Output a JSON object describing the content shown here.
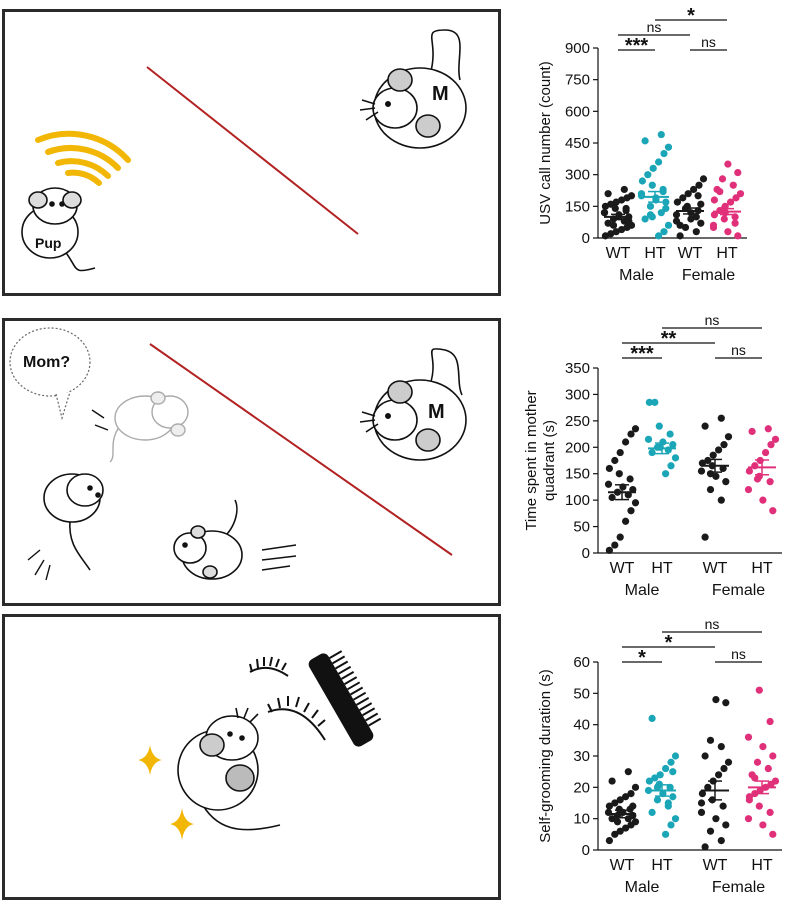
{
  "panels": [
    {
      "illustration": {
        "pup_label": "Pup",
        "mother_label": "M",
        "speech": ""
      }
    },
    {
      "illustration": {
        "pup_label": "",
        "mother_label": "M",
        "speech": "Mom?"
      }
    },
    {
      "illustration": {
        "pup_label": "",
        "mother_label": "",
        "speech": ""
      }
    }
  ],
  "colors": {
    "wt": "#1a1a1a",
    "ht_male": "#1aa6b7",
    "ht_female": "#e0307a",
    "divider": "#b22222",
    "sound_waves": "#f2b705",
    "sparkle": "#f2b705"
  },
  "chart_data": [
    {
      "type": "scatter",
      "title": "",
      "ylabel": "USV call number (count)",
      "ylim": [
        0,
        900
      ],
      "yticks": [
        0,
        150,
        300,
        450,
        600,
        750,
        900
      ],
      "categories": [
        "WT",
        "HT",
        "WT",
        "HT"
      ],
      "groups": [
        "Male",
        "Female"
      ],
      "series": [
        {
          "name": "Male WT",
          "color_key": "wt",
          "mean": 100,
          "sem": 12,
          "values": [
            10,
            20,
            30,
            40,
            50,
            60,
            70,
            80,
            90,
            100,
            110,
            120,
            130,
            140,
            150,
            160,
            170,
            180,
            190,
            200,
            210,
            230,
            60,
            80,
            100,
            120,
            140
          ]
        },
        {
          "name": "Male HT",
          "color_key": "ht_male",
          "mean": 195,
          "sem": 25,
          "values": [
            10,
            30,
            60,
            90,
            120,
            150,
            170,
            190,
            210,
            230,
            250,
            270,
            300,
            330,
            360,
            400,
            430,
            460,
            490,
            110,
            140,
            180,
            200,
            220,
            100
          ]
        },
        {
          "name": "Female WT",
          "color_key": "wt",
          "mean": 128,
          "sem": 14,
          "values": [
            10,
            30,
            50,
            70,
            90,
            110,
            130,
            150,
            170,
            190,
            210,
            230,
            250,
            280,
            60,
            100,
            140,
            160,
            120,
            80,
            200
          ]
        },
        {
          "name": "Female HT",
          "color_key": "ht_female",
          "mean": 125,
          "sem": 14,
          "values": [
            10,
            30,
            50,
            70,
            90,
            110,
            130,
            150,
            170,
            190,
            210,
            230,
            250,
            280,
            310,
            350,
            60,
            100,
            140,
            180,
            220,
            120
          ]
        }
      ],
      "significance": [
        {
          "from": 0,
          "to": 1,
          "label": "***",
          "level": 1
        },
        {
          "from": 2,
          "to": 3,
          "label": "ns",
          "level": 1
        },
        {
          "from": 0,
          "to": 2,
          "label": "ns",
          "level": 2
        },
        {
          "from": 1,
          "to": 3,
          "label": "*",
          "level": 3
        }
      ]
    },
    {
      "type": "scatter",
      "title": "",
      "ylabel": "Time spent in mother quadrant (s)",
      "ylabel_lines": [
        "Time spent in mother",
        "quadrant (s)"
      ],
      "ylim": [
        0,
        350
      ],
      "yticks": [
        0,
        50,
        100,
        150,
        200,
        250,
        300,
        350
      ],
      "categories": [
        "WT",
        "HT",
        "WT",
        "HT"
      ],
      "groups": [
        "Male",
        "Female"
      ],
      "series": [
        {
          "name": "Male WT",
          "color_key": "wt",
          "mean": 115,
          "sem": 14,
          "values": [
            5,
            15,
            30,
            60,
            80,
            95,
            105,
            110,
            115,
            120,
            125,
            130,
            140,
            150,
            160,
            175,
            190,
            210,
            225,
            235
          ]
        },
        {
          "name": "Male HT",
          "color_key": "ht_male",
          "mean": 198,
          "sem": 10,
          "values": [
            150,
            165,
            180,
            190,
            195,
            200,
            205,
            210,
            215,
            225,
            240,
            285,
            285,
            200
          ]
        },
        {
          "name": "Female WT",
          "color_key": "wt",
          "mean": 165,
          "sem": 12,
          "values": [
            30,
            100,
            120,
            135,
            145,
            155,
            160,
            165,
            170,
            175,
            185,
            195,
            205,
            220,
            240,
            255,
            150
          ]
        },
        {
          "name": "Female HT",
          "color_key": "ht_female",
          "mean": 162,
          "sem": 14,
          "values": [
            80,
            100,
            120,
            135,
            145,
            155,
            165,
            175,
            190,
            205,
            215,
            230,
            235,
            140
          ]
        }
      ],
      "significance": [
        {
          "from": 0,
          "to": 1,
          "label": "***",
          "level": 1
        },
        {
          "from": 2,
          "to": 3,
          "label": "ns",
          "level": 1
        },
        {
          "from": 0,
          "to": 2,
          "label": "**",
          "level": 2
        },
        {
          "from": 1,
          "to": 3,
          "label": "ns",
          "level": 3
        }
      ]
    },
    {
      "type": "scatter",
      "title": "",
      "ylabel": "Self-grooming duration (s)",
      "ylim": [
        0,
        60
      ],
      "yticks": [
        0,
        10,
        20,
        30,
        40,
        50,
        60
      ],
      "categories": [
        "WT",
        "HT",
        "WT",
        "HT"
      ],
      "groups": [
        "Male",
        "Female"
      ],
      "series": [
        {
          "name": "Male WT",
          "color_key": "wt",
          "mean": 11.5,
          "sem": 1.2,
          "values": [
            3,
            5,
            6,
            7,
            8,
            9,
            10,
            10,
            11,
            11,
            12,
            12,
            13,
            13,
            14,
            15,
            16,
            17,
            18,
            20,
            22,
            25,
            9,
            14
          ]
        },
        {
          "name": "Male HT",
          "color_key": "ht_male",
          "mean": 19,
          "sem": 1.8,
          "values": [
            5,
            8,
            10,
            12,
            14,
            16,
            17,
            18,
            19,
            20,
            21,
            22,
            23,
            24,
            26,
            28,
            30,
            42,
            15,
            20,
            25
          ]
        },
        {
          "name": "Female WT",
          "color_key": "wt",
          "mean": 19,
          "sem": 3,
          "values": [
            1,
            3,
            6,
            8,
            10,
            12,
            14,
            16,
            18,
            20,
            22,
            24,
            26,
            28,
            30,
            33,
            35,
            47,
            48,
            15
          ]
        },
        {
          "name": "Female HT",
          "color_key": "ht_female",
          "mean": 20,
          "sem": 2,
          "values": [
            5,
            8,
            10,
            12,
            14,
            16,
            18,
            19,
            20,
            21,
            22,
            24,
            26,
            28,
            30,
            33,
            36,
            41,
            51,
            17,
            23
          ]
        }
      ],
      "significance": [
        {
          "from": 0,
          "to": 1,
          "label": "*",
          "level": 1
        },
        {
          "from": 2,
          "to": 3,
          "label": "ns",
          "level": 1
        },
        {
          "from": 0,
          "to": 2,
          "label": "*",
          "level": 2
        },
        {
          "from": 1,
          "to": 3,
          "label": "ns",
          "level": 3
        }
      ]
    }
  ]
}
